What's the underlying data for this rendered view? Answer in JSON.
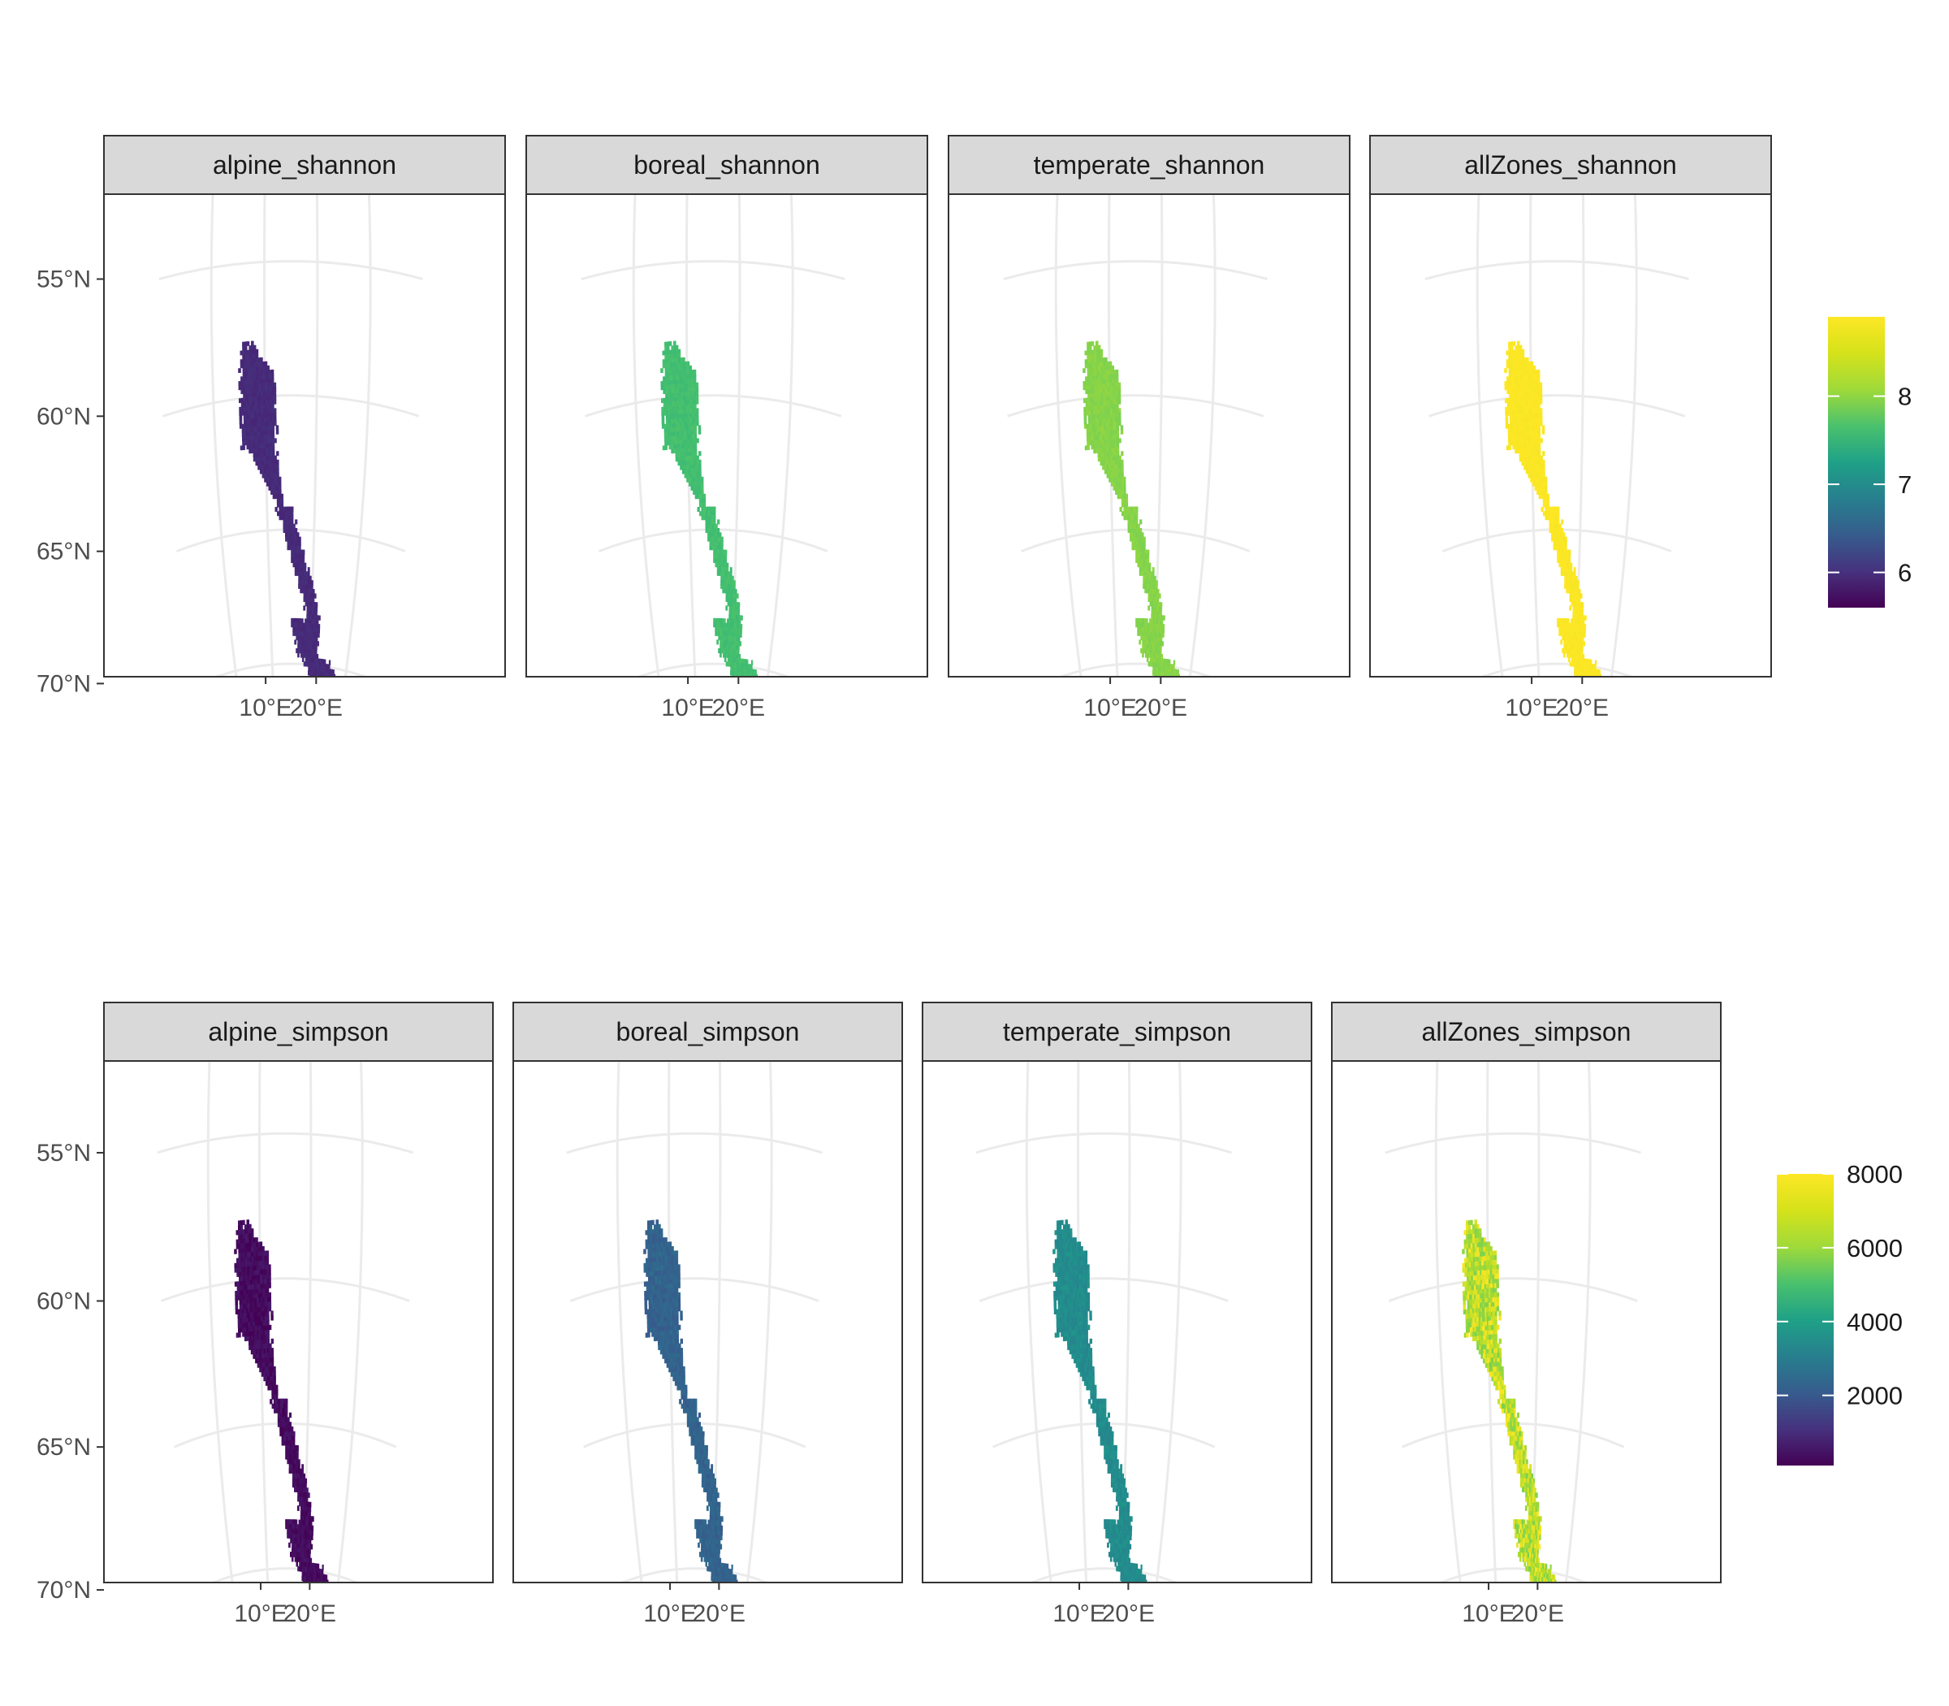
{
  "figure": {
    "rows": [
      {
        "id": "shannon",
        "panels": [
          {
            "name": "alpine_shannon",
            "value": 6.0
          },
          {
            "name": "boreal_shannon",
            "value": 7.9
          },
          {
            "name": "temperate_shannon",
            "value": 8.3
          },
          {
            "name": "allZones_shannon",
            "value": 8.9
          }
        ],
        "color_scale": {
          "min": 5.6,
          "max": 8.9,
          "ticks": [
            6,
            7,
            8
          ],
          "tick_labels": [
            "6",
            "7",
            "8"
          ]
        }
      },
      {
        "id": "simpson",
        "panels": [
          {
            "name": "alpine_simpson",
            "value": 350
          },
          {
            "name": "boreal_simpson",
            "value": 2600
          },
          {
            "name": "temperate_simpson",
            "value": 3900
          },
          {
            "name": "allZones_simpson",
            "value": 7200
          }
        ],
        "color_scale": {
          "min": 100,
          "max": 8000,
          "ticks": [
            2000,
            4000,
            6000,
            8000
          ],
          "tick_labels": [
            "2000",
            "4000",
            "6000",
            "8000"
          ]
        }
      }
    ],
    "axes": {
      "lat_labels": [
        "55°N",
        "60°N",
        "65°N",
        "70°N"
      ],
      "lon_labels": [
        "10°E",
        "20°E"
      ]
    },
    "colors": {
      "palette": "viridis",
      "strip_fill": "#d9d9d9",
      "grid": "#ebebeb",
      "panel_border": "#333333"
    }
  }
}
